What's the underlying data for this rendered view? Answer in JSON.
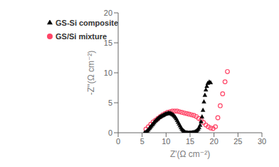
{
  "chart_data": {
    "type": "scatter",
    "title": "",
    "xlabel": "Z'(Ω cm⁻²)",
    "ylabel": "-Z''(Ω cm⁻²)",
    "xlim": [
      0,
      30
    ],
    "ylim": [
      0,
      20
    ],
    "xticks": [
      0,
      5,
      10,
      15,
      20,
      25,
      30
    ],
    "yticks": [
      0,
      5,
      10,
      15,
      20
    ],
    "legend": "upper left",
    "series": [
      {
        "name": "GS/Si mixture",
        "color": "#FF4466",
        "marker": "circle",
        "x": [
          5.8,
          6.3,
          6.8,
          7.3,
          7.8,
          8.3,
          8.8,
          9.3,
          9.8,
          10.3,
          10.8,
          11.3,
          11.8,
          12.3,
          12.8,
          13.3,
          13.8,
          14.3,
          14.8,
          15.3,
          15.8,
          16.3,
          16.8,
          17.3,
          17.8,
          18.3,
          18.8,
          19.3,
          19.8,
          20.3,
          20.8,
          21.3,
          21.8,
          22.3,
          22.8
        ],
        "values": [
          0.6,
          1.0,
          1.4,
          1.8,
          2.1,
          2.4,
          2.7,
          3.0,
          3.2,
          3.4,
          3.5,
          3.6,
          3.6,
          3.6,
          3.5,
          3.4,
          3.3,
          3.2,
          3.1,
          3.0,
          2.9,
          2.7,
          2.4,
          2.1,
          1.7,
          1.3,
          1.0,
          0.8,
          0.7,
          1.0,
          2.5,
          4.5,
          6.5,
          8.5,
          10.2
        ]
      },
      {
        "name": "GS-Si composite",
        "color": "black",
        "marker": "triangle",
        "x": [
          5.5,
          5.7,
          5.9,
          6.1,
          6.3,
          6.5,
          6.7,
          6.9,
          7.1,
          7.3,
          7.5,
          7.7,
          7.9,
          8.1,
          8.3,
          8.5,
          8.7,
          8.9,
          9.1,
          9.3,
          9.5,
          9.7,
          9.9,
          10.1,
          10.3,
          10.5,
          10.7,
          10.9,
          11.1,
          11.3,
          11.5,
          11.7,
          11.9,
          12.1,
          12.3,
          12.5,
          12.7,
          12.9,
          13.1,
          13.3,
          13.5,
          13.7,
          13.9,
          14.1,
          14.3,
          14.5,
          14.7,
          14.9,
          15.1,
          15.3,
          15.5,
          15.7,
          15.9,
          16.1,
          16.3,
          16.5,
          16.7,
          16.9,
          17.1,
          17.3,
          17.5,
          17.7,
          17.9,
          18.1,
          18.3,
          18.5,
          18.7,
          19.0,
          19.3
        ],
        "values": [
          0.05,
          0.1,
          0.2,
          0.35,
          0.55,
          0.75,
          0.95,
          1.15,
          1.35,
          1.55,
          1.75,
          1.95,
          2.1,
          2.25,
          2.4,
          2.55,
          2.65,
          2.75,
          2.85,
          2.9,
          3.0,
          3.1,
          3.15,
          3.2,
          3.25,
          3.3,
          3.3,
          3.25,
          3.2,
          3.1,
          3.0,
          2.85,
          2.65,
          2.4,
          2.1,
          1.8,
          1.5,
          1.2,
          0.9,
          0.65,
          0.45,
          0.3,
          0.18,
          0.1,
          0.06,
          0.04,
          0.03,
          0.03,
          0.03,
          0.05,
          0.07,
          0.1,
          0.15,
          0.2,
          0.3,
          0.45,
          0.65,
          0.9,
          1.3,
          1.9,
          2.7,
          3.8,
          5.2,
          6.3,
          7.2,
          7.8,
          8.3,
          8.5,
          8.4
        ]
      }
    ]
  }
}
